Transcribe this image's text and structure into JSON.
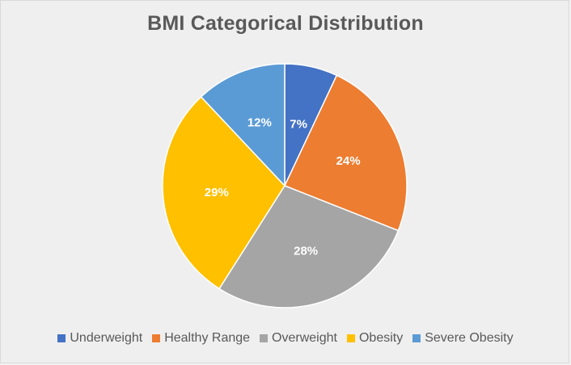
{
  "chart_data": {
    "type": "pie",
    "title": "BMI Categorical Distribution",
    "categories": [
      "Underweight",
      "Healthy Range",
      "Overweight",
      "Obesity",
      "Severe Obesity"
    ],
    "values": [
      7,
      24,
      28,
      29,
      12
    ],
    "value_labels": [
      "7%",
      "24%",
      "28%",
      "29%",
      "12%"
    ],
    "colors": [
      "#4472c4",
      "#ed7d31",
      "#a5a5a5",
      "#ffc000",
      "#5b9bd5"
    ],
    "legend_position": "bottom"
  }
}
